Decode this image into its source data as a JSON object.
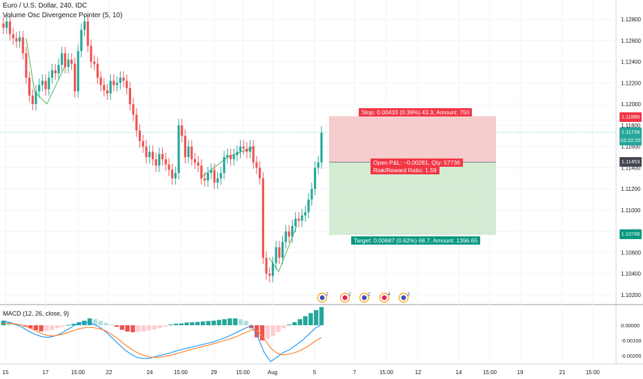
{
  "header": {
    "symbol_line": "Euro / U.S. Dollar, 240, IDC",
    "indicator_line": "Volume Osc Divergence Pointer (5, 10)",
    "macd_label": "MACD (12, 26, close, 9)"
  },
  "price_axis": {
    "ticks": [
      "1.12800",
      "1.12600",
      "1.12400",
      "1.12200",
      "1.12000",
      "1.11800",
      "1.11600",
      "1.11400",
      "1.11200",
      "1.11000",
      "1.10800",
      "1.10600",
      "1.10400",
      "1.10200"
    ],
    "tags": {
      "stop": "1.11886",
      "last": "1.11734",
      "countdown": "02:22:20",
      "entry": "1.11453",
      "target": "1.10766"
    }
  },
  "time_axis": {
    "labels": [
      "15",
      "17",
      "15:00",
      "22",
      "24",
      "15:00",
      "29",
      "15:00",
      "Aug",
      "5",
      "7",
      "15:00",
      "12",
      "14",
      "15:00",
      "19",
      "21",
      "15:00"
    ]
  },
  "position": {
    "stop_label": "Stop: 0.00433 (0.39%) 43.3, Amount: 750",
    "pnl_label": "Open P&L: −0.00281, Qty: 57736",
    "rr_label": "Risk/Reward Ratio: 1.59",
    "target_label": "Target: 0.00687 (0.62%) 68.7, Amount: 1396.65"
  },
  "macd_axis": {
    "ticks": [
      "0.00000",
      "-0.00100",
      "-0.00200"
    ]
  },
  "events": {
    "markers": [
      "2",
      "2",
      "2",
      "4",
      "3"
    ]
  },
  "colors": {
    "up": "#26a69a",
    "down": "#ef5350",
    "stop_zone": "#f6c7c8",
    "target_zone": "#cfe9cf",
    "macd_line": "#2196f3",
    "signal_line": "#ff7f2a",
    "diverge_line": "#4caf50"
  },
  "chart_data": {
    "type": "candlestick",
    "title": "Euro / U.S. Dollar, 240, IDC",
    "ylim": [
      1.102,
      1.129
    ],
    "closes": [
      1.1272,
      1.1278,
      1.1266,
      1.1262,
      1.1259,
      1.1263,
      1.1248,
      1.1225,
      1.1208,
      1.12,
      1.1212,
      1.1218,
      1.1222,
      1.1214,
      1.1225,
      1.1232,
      1.1229,
      1.1237,
      1.1248,
      1.1235,
      1.1242,
      1.1238,
      1.1212,
      1.125,
      1.127,
      1.1278,
      1.1255,
      1.124,
      1.1238,
      1.1225,
      1.1218,
      1.1213,
      1.121,
      1.1222,
      1.1218,
      1.122,
      1.1225,
      1.1222,
      1.1215,
      1.12,
      1.119,
      1.1175,
      1.1165,
      1.116,
      1.115,
      1.1155,
      1.1148,
      1.1142,
      1.1153,
      1.1148,
      1.1143,
      1.1138,
      1.113,
      1.1135,
      1.118,
      1.117,
      1.115,
      1.116,
      1.1148,
      1.1145,
      1.1142,
      1.113,
      1.1128,
      1.1135,
      1.1138,
      1.1126,
      1.113,
      1.1135,
      1.115,
      1.1152,
      1.1148,
      1.1152,
      1.1155,
      1.116,
      1.1158,
      1.1155,
      1.116,
      1.1145,
      1.114,
      1.113,
      1.1055,
      1.104,
      1.1038,
      1.105,
      1.1065,
      1.1055,
      1.107,
      1.108,
      1.1075,
      1.1085,
      1.1092,
      1.109,
      1.1095,
      1.1098,
      1.111,
      1.112,
      1.114,
      1.1145,
      1.1173
    ],
    "macd_histogram": [
      0.0003,
      0.00022,
      0.00012,
      2e-05,
      -8e-05,
      -0.0002,
      -0.00032,
      -0.0004,
      -0.00038,
      -0.0003,
      -0.0002,
      -0.0001,
      2e-05,
      0.0001,
      0.0002,
      0.0003,
      0.00045,
      0.0004,
      0.0003,
      0.00015,
      5e-05,
      -0.0001,
      -0.0003,
      -0.00042,
      -0.00046,
      -0.00044,
      -0.0004,
      -0.00035,
      -0.00028,
      -0.0002,
      -0.0001,
      5e-05,
      0.0001,
      0.00012,
      0.00018,
      0.0002,
      0.00022,
      0.00025,
      0.00028,
      0.0003,
      0.00035,
      0.0004,
      0.00045,
      0.00045,
      0.0004,
      0.0003,
      -0.0002,
      -0.0008,
      -0.001,
      -0.0009,
      -0.0007,
      -0.00045,
      -0.0002,
      5e-05,
      0.0002,
      0.0004,
      0.0006,
      0.0008,
      0.001,
      0.0012
    ],
    "macd_line": [
      0.00028,
      0.00018,
      5e-05,
      -0.00015,
      -0.0004,
      -0.0006,
      -0.00075,
      -0.0008,
      -0.00072,
      -0.00055,
      -0.0003,
      -5e-05,
      0.00015,
      0.00018,
      0.0001,
      -0.0001,
      -0.0004,
      -0.0008,
      -0.0012,
      -0.0016,
      -0.0019,
      -0.00212,
      -0.0022,
      -0.00218,
      -0.00205,
      -0.00195,
      -0.00185,
      -0.00172,
      -0.0016,
      -0.0015,
      -0.0014,
      -0.0013,
      -0.0012,
      -0.0011,
      -0.00095,
      -0.0008,
      -0.0006,
      -0.0004,
      -0.0002,
      0.0,
      -0.0008,
      -0.0018,
      -0.0024,
      -0.0021,
      -0.0018,
      -0.0016,
      -0.0013,
      -0.001,
      -0.0006,
      -0.0002,
      5e-05
    ],
    "signal_line": [
      0.0001,
      0.00012,
      8e-05,
      0.0,
      -0.00015,
      -0.00035,
      -0.00055,
      -0.00068,
      -0.0007,
      -0.00062,
      -0.0005,
      -0.00035,
      -0.00022,
      -0.00015,
      -0.00015,
      -0.00022,
      -0.00035,
      -0.0006,
      -0.0009,
      -0.00125,
      -0.00155,
      -0.0018,
      -0.00198,
      -0.0021,
      -0.00212,
      -0.00208,
      -0.002,
      -0.0019,
      -0.00178,
      -0.00166,
      -0.00155,
      -0.00144,
      -0.00133,
      -0.00122,
      -0.0011,
      -0.00098,
      -0.00084,
      -0.00068,
      -0.0005,
      -0.0003,
      -0.0004,
      -0.0009,
      -0.0015,
      -0.00185,
      -0.00195,
      -0.0019,
      -0.00178,
      -0.0016,
      -0.00135,
      -0.00105,
      -0.0008
    ]
  }
}
